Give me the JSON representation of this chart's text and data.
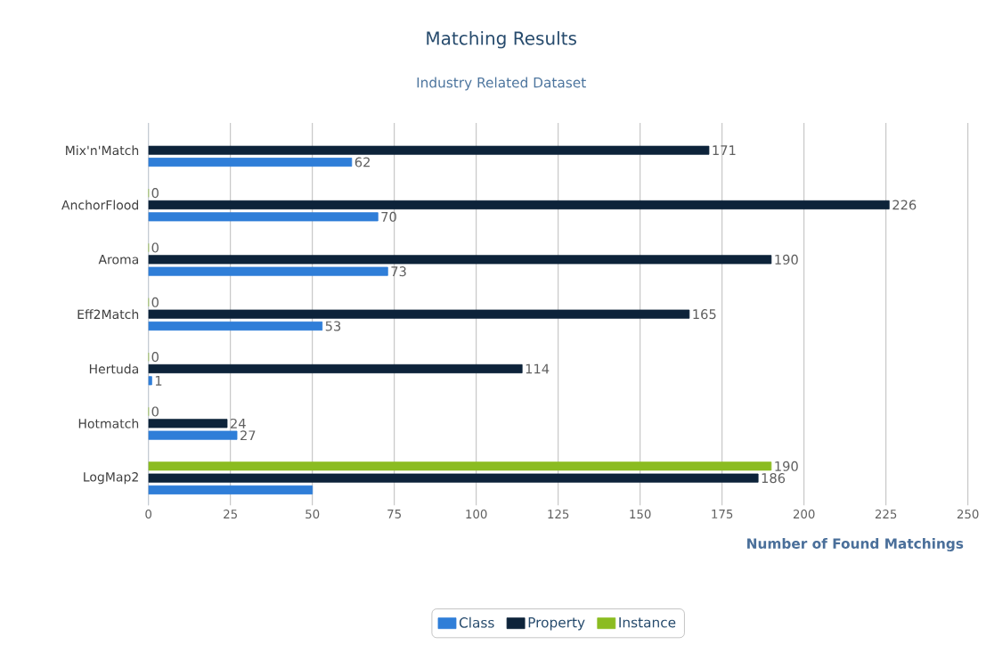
{
  "chart_data": {
    "type": "bar",
    "orientation": "horizontal",
    "title": "Matching Results",
    "subtitle": "Industry Related Dataset",
    "xlabel": "Number of Found Matchings",
    "categories": [
      "Mix'n'Match",
      "AnchorFlood",
      "Aroma",
      "Eff2Match",
      "Hertuda",
      "Hotmatch",
      "LogMap2"
    ],
    "series": [
      {
        "name": "Class",
        "color": "#2f7ed8",
        "values": [
          62,
          70,
          73,
          53,
          1,
          27,
          50
        ],
        "value_labels": [
          "62",
          "70",
          "73",
          "53",
          "1",
          "27",
          null
        ]
      },
      {
        "name": "Property",
        "color": "#0d233a",
        "values": [
          171,
          226,
          190,
          165,
          114,
          24,
          186
        ],
        "value_labels": [
          "171",
          "226",
          "190",
          "165",
          "114",
          "24",
          "186"
        ]
      },
      {
        "name": "Instance",
        "color": "#8bbc21",
        "values": [
          null,
          0,
          0,
          0,
          0,
          0,
          190
        ],
        "value_labels": [
          null,
          "0",
          "0",
          "0",
          "0",
          "0",
          "190"
        ]
      }
    ],
    "xlim": [
      0,
      250
    ],
    "xticks": [
      0,
      25,
      50,
      75,
      100,
      125,
      150,
      175,
      200,
      225,
      250
    ],
    "grid": "x",
    "legend": "bottom"
  }
}
